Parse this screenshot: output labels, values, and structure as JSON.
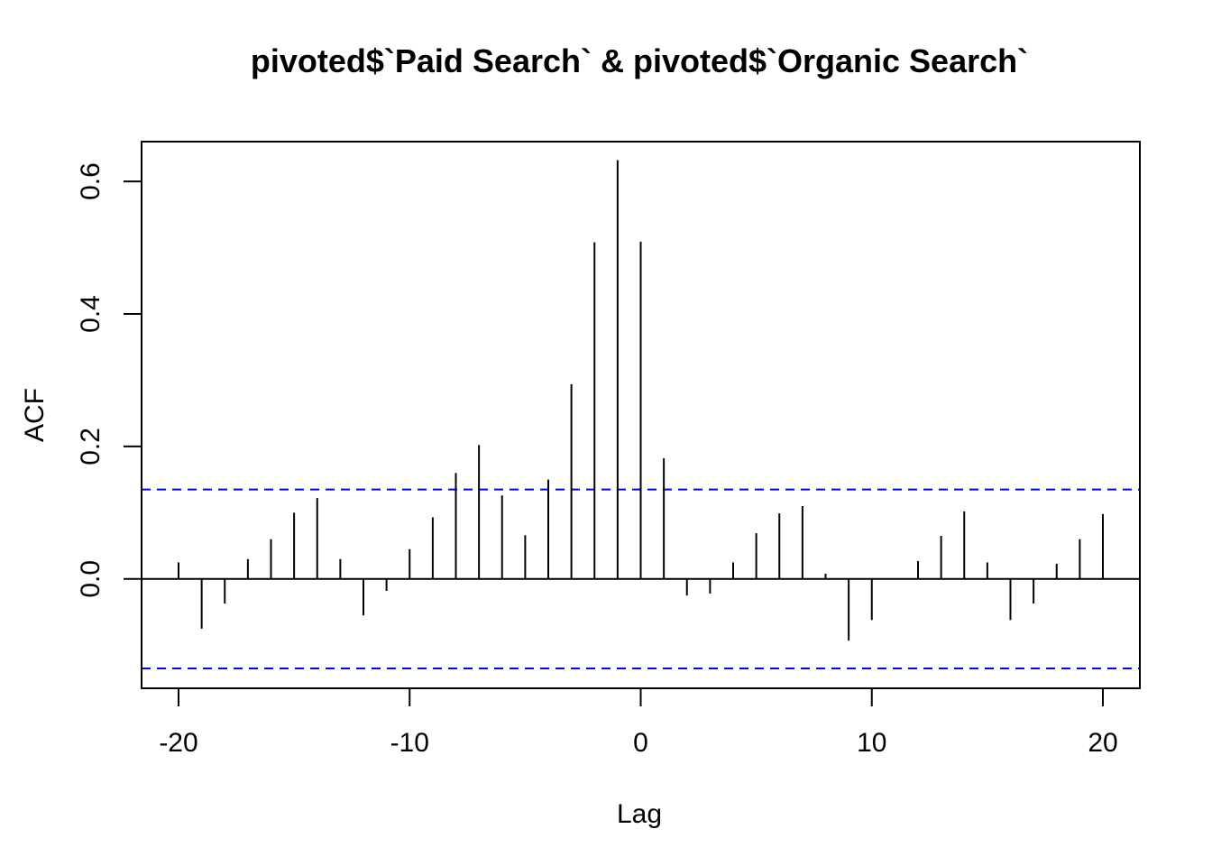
{
  "chart_data": {
    "type": "bar",
    "title": "pivoted$`Paid Search` & pivoted$`Organic Search`",
    "xlabel": "Lag",
    "ylabel": "ACF",
    "xlim": [
      -21.6,
      21.6
    ],
    "ylim": [
      -0.165,
      0.66
    ],
    "x_ticks": [
      -20,
      -10,
      0,
      10,
      20
    ],
    "x_tick_labels": [
      "-20",
      "-10",
      "0",
      "10",
      "20"
    ],
    "y_ticks": [
      0.0,
      0.2,
      0.4,
      0.6
    ],
    "y_tick_labels": [
      "0.0",
      "0.2",
      "0.4",
      "0.6"
    ],
    "confidence_band": 0.135,
    "zero_line": 0,
    "grid": false,
    "colors": {
      "bars": "#000000",
      "confidence": "#0000ee",
      "frame": "#000000"
    },
    "lags": [
      -20,
      -19,
      -18,
      -17,
      -16,
      -15,
      -14,
      -13,
      -12,
      -11,
      -10,
      -9,
      -8,
      -7,
      -6,
      -5,
      -4,
      -3,
      -2,
      -1,
      0,
      1,
      2,
      3,
      4,
      5,
      6,
      7,
      8,
      9,
      10,
      11,
      12,
      13,
      14,
      15,
      16,
      17,
      18,
      19,
      20
    ],
    "values": [
      0.025,
      -0.075,
      -0.037,
      0.03,
      0.06,
      0.1,
      0.122,
      0.03,
      -0.055,
      -0.018,
      0.045,
      0.093,
      0.16,
      0.202,
      0.126,
      0.066,
      0.15,
      0.294,
      0.508,
      0.632,
      0.509,
      0.182,
      -0.025,
      -0.022,
      0.025,
      0.069,
      0.099,
      0.11,
      0.008,
      -0.093,
      -0.062,
      0.0,
      0.027,
      0.065,
      0.102,
      0.025,
      -0.062,
      -0.037,
      0.023,
      0.06,
      0.098
    ]
  }
}
